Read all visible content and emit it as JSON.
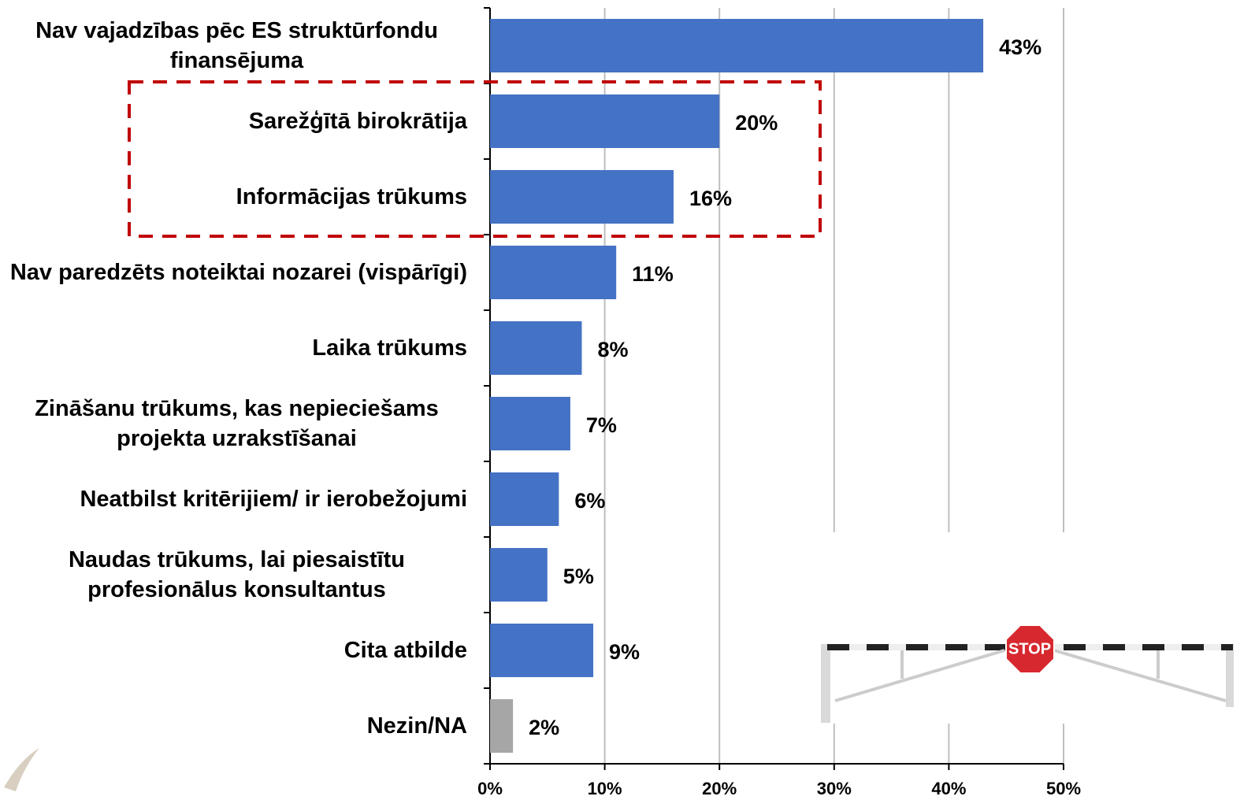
{
  "chart_data": {
    "type": "bar",
    "orientation": "horizontal",
    "categories": [
      "Nav vajadzības pēc ES struktūrfondu finansējuma",
      "Sarežģītā birokrātija",
      "Informācijas trūkums",
      "Nav paredzēts noteiktai nozarei (vispārīgi)",
      "Laika trūkums",
      "Zināšanu trūkums, kas nepieciešams projekta uzrakstīšanai",
      "Neatbilst kritērijiem/ ir ierobežojumi",
      "Naudas trūkums, lai piesaistītu profesionālus konsultantus",
      "Cita atbilde",
      "Nezin/NA"
    ],
    "values": [
      43,
      20,
      16,
      11,
      8,
      7,
      6,
      5,
      9,
      2
    ],
    "value_labels": [
      "43%",
      "20%",
      "16%",
      "11%",
      "8%",
      "7%",
      "6%",
      "5%",
      "9%",
      "2%"
    ],
    "colors": [
      "#4472c4",
      "#4472c4",
      "#4472c4",
      "#4472c4",
      "#4472c4",
      "#4472c4",
      "#4472c4",
      "#4472c4",
      "#4472c4",
      "#a6a6a6"
    ],
    "xlim": [
      0,
      50
    ],
    "xticks": [
      {
        "value": 0,
        "label": "0%"
      },
      {
        "value": 10,
        "label": "10%"
      },
      {
        "value": 20,
        "label": "20%"
      },
      {
        "value": 30,
        "label": "30%"
      },
      {
        "value": 40,
        "label": "40%"
      },
      {
        "value": 50,
        "label": "50%"
      }
    ],
    "grid": true
  },
  "image": {
    "sign": "STOP"
  }
}
